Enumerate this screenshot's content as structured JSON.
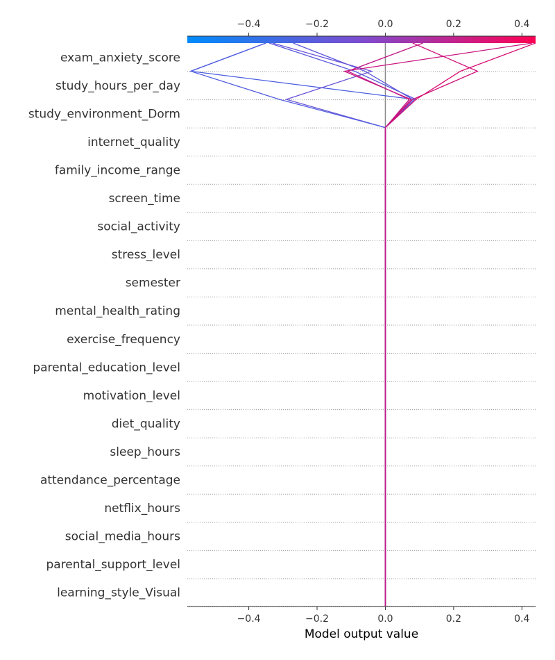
{
  "chart_data": {
    "type": "line",
    "xlabel": "Model output value",
    "ylabel": "",
    "xlim": [
      -0.58,
      0.44
    ],
    "x_ticks": [
      -0.4,
      -0.2,
      0.0,
      0.2,
      0.4
    ],
    "x_tick_labels": [
      "−0.4",
      "−0.2",
      "0.0",
      "0.2",
      "0.4"
    ],
    "base_value": 0.0,
    "grid": "dotted-horizontal",
    "colorbar": {
      "position": "top",
      "low_color": "#008bfb",
      "mid_color": "#7d4ccf",
      "high_color": "#ff0052"
    },
    "features": [
      "exam_anxiety_score",
      "study_hours_per_day",
      "study_environment_Dorm",
      "internet_quality",
      "family_income_range",
      "screen_time",
      "social_activity",
      "stress_level",
      "semester",
      "mental_health_rating",
      "exercise_frequency",
      "parental_education_level",
      "motivation_level",
      "diet_quality",
      "sleep_hours",
      "attendance_percentage",
      "netflix_hours",
      "social_media_hours",
      "parental_support_level",
      "learning_style_Visual"
    ],
    "series": [
      {
        "color": "#4a5fe0",
        "values": [
          0.0,
          0.0,
          0.085,
          -0.57,
          -0.35
        ]
      },
      {
        "color": "#5a58dc",
        "values": [
          0.0,
          0.0,
          0.09,
          -0.09,
          -0.34
        ]
      },
      {
        "color": "#5e58dc",
        "values": [
          0.0,
          0.0,
          0.08,
          -0.06,
          -0.27
        ]
      },
      {
        "color": "#6a55d8",
        "values": [
          0.0,
          0.0,
          -0.29,
          -0.04,
          -0.33
        ]
      },
      {
        "color": "#4f5ddf",
        "values": [
          0.0,
          0.0,
          -0.31,
          -0.57,
          -0.35
        ]
      },
      {
        "color": "#d0107a",
        "values": [
          0.0,
          0.0,
          0.08,
          0.27,
          0.08
        ]
      },
      {
        "color": "#c81580",
        "values": [
          0.0,
          0.0,
          0.075,
          -0.12,
          0.43
        ]
      },
      {
        "color": "#d80f72",
        "values": [
          0.0,
          0.0,
          0.09,
          0.22,
          0.44
        ]
      },
      {
        "color": "#c01886",
        "values": [
          0.0,
          0.0,
          0.07,
          -0.11,
          0.11
        ]
      }
    ]
  }
}
